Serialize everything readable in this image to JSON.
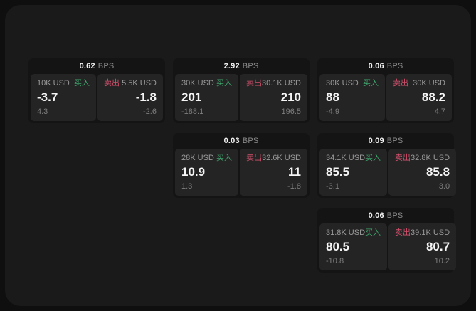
{
  "labels": {
    "bps_unit": "BPS",
    "buy": "买入",
    "sell": "卖出"
  },
  "colors": {
    "outer_bg": "#0f0f0f",
    "surface_bg": "#1a1a1a",
    "card_bg": "#141414",
    "panel_bg": "#242424",
    "buy_green": "#3fa36c",
    "sell_red": "#cf4f6b",
    "primary_text": "#f5f5f5",
    "muted_text": "#8b8b8b"
  },
  "cards": [
    {
      "bps": "0.62",
      "buy": {
        "notional": "10K USD",
        "price": "-3.7",
        "change": "4.3"
      },
      "sell": {
        "notional": "5.5K USD",
        "price": "-1.8",
        "change": "-2.6"
      }
    },
    {
      "bps": "2.92",
      "buy": {
        "notional": "30K USD",
        "price": "201",
        "change": "-188.1"
      },
      "sell": {
        "notional": "30.1K USD",
        "price": "210",
        "change": "196.5"
      }
    },
    {
      "bps": "0.06",
      "buy": {
        "notional": "30K USD",
        "price": "88",
        "change": "-4.9"
      },
      "sell": {
        "notional": "30K USD",
        "price": "88.2",
        "change": "4.7"
      }
    },
    {
      "bps": "0.03",
      "buy": {
        "notional": "28K USD",
        "price": "10.9",
        "change": "1.3"
      },
      "sell": {
        "notional": "32.6K USD",
        "price": "11",
        "change": "-1.8"
      }
    },
    {
      "bps": "0.09",
      "buy": {
        "notional": "34.1K USD",
        "price": "85.5",
        "change": "-3.1"
      },
      "sell": {
        "notional": "32.8K USD",
        "price": "85.8",
        "change": "3.0"
      }
    },
    {
      "bps": "0.06",
      "buy": {
        "notional": "31.8K USD",
        "price": "80.5",
        "change": "-10.8"
      },
      "sell": {
        "notional": "39.1K USD",
        "price": "80.7",
        "change": "10.2"
      }
    }
  ]
}
